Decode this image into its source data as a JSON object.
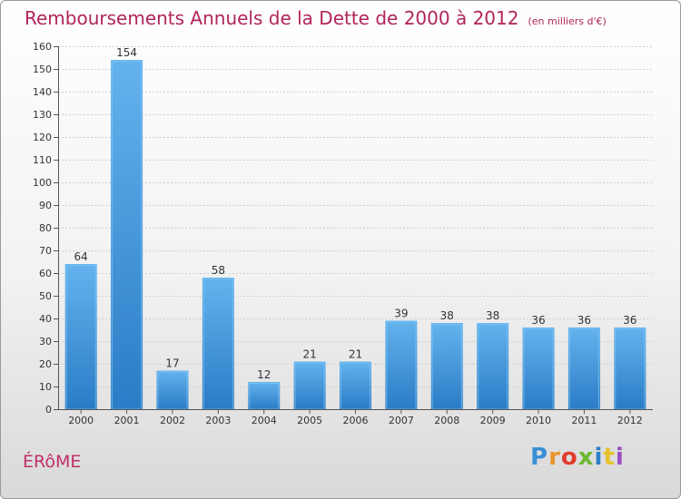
{
  "title": "Remboursements Annuels de la Dette de 2000 à 2012",
  "unit": "(en milliers d'€)",
  "city": "ÉRôME",
  "logo": {
    "text": "Proxiti",
    "colors": [
      "#3a8fd6",
      "#e8952a",
      "#e03c2e",
      "#6bb833",
      "#2f7fc6",
      "#e8c22a",
      "#9b4fc4"
    ]
  },
  "colors": {
    "bar": "#3b8fd8",
    "bar_light": "#6ab6ef",
    "title": "#b0245a"
  },
  "chart_data": {
    "type": "bar",
    "categories": [
      "2000",
      "2001",
      "2002",
      "2003",
      "2004",
      "2005",
      "2006",
      "2007",
      "2008",
      "2009",
      "2010",
      "2011",
      "2012"
    ],
    "values": [
      64,
      154,
      17,
      58,
      12,
      21,
      21,
      39,
      38,
      38,
      36,
      36,
      36
    ],
    "ylim": [
      0,
      160
    ],
    "yticks": [
      0,
      10,
      20,
      30,
      40,
      50,
      60,
      70,
      80,
      90,
      100,
      110,
      120,
      130,
      140,
      150,
      160
    ],
    "grid": true,
    "xlabel": "",
    "ylabel": ""
  }
}
